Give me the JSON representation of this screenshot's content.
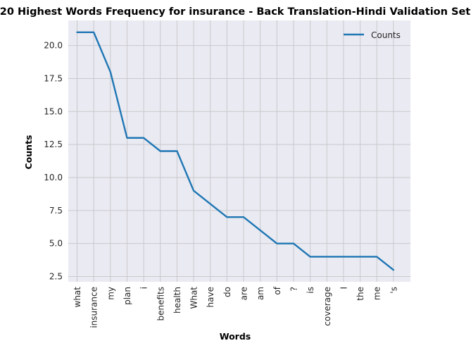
{
  "chart_data": {
    "type": "line",
    "title": "20 Highest Words Frequency for insurance - Back Translation-Hindi Validation Set",
    "xlabel": "Words",
    "ylabel": "Counts",
    "categories": [
      "what",
      "insurance",
      "my",
      "plan",
      "i",
      "benefits",
      "health",
      "What",
      "have",
      "do",
      "are",
      "am",
      "of",
      "?",
      "is",
      "coverage",
      "I",
      "the",
      "me",
      "'s"
    ],
    "series": [
      {
        "name": "Counts",
        "values": [
          21,
          21,
          18,
          13,
          13,
          12,
          12,
          9,
          8,
          7,
          7,
          6,
          5,
          5,
          4,
          4,
          4,
          4,
          4,
          3
        ],
        "color": "#1f77b4"
      }
    ],
    "ylim": [
      2.1,
      21.9
    ],
    "yticks": [
      "2.5",
      "5.0",
      "7.5",
      "10.0",
      "12.5",
      "15.0",
      "17.5",
      "20.0"
    ],
    "grid": true,
    "legend": "top-right",
    "background_color": "#eaeaf2",
    "grid_color": "#c8c8cc"
  }
}
